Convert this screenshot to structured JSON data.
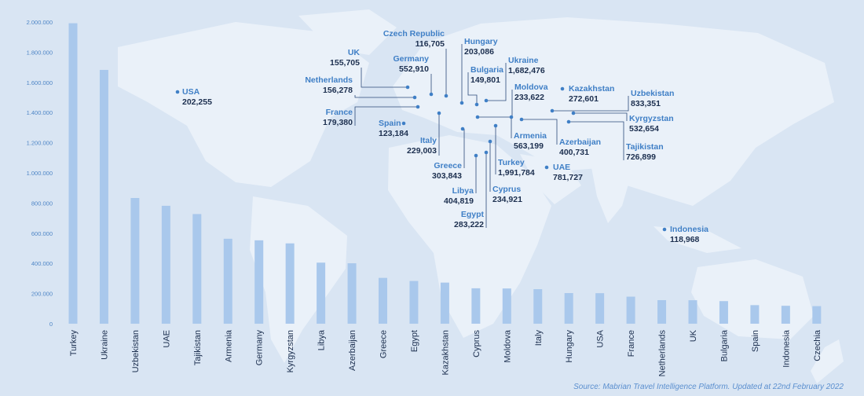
{
  "colors": {
    "background": "#d9e5f3",
    "land": "#eaf1f9",
    "bar": "#a9c8ec",
    "axis_text": "#4f86c6",
    "label_name": "#3f7fc6",
    "label_value": "#1c2f4f",
    "leader": "#2b4a7a",
    "dot": "#3f7fc6"
  },
  "source": "Source: Mabrian Travel Intelligence Platform. Updated at 22nd February 2022",
  "chart_data": {
    "type": "bar",
    "title": "",
    "xlabel": "",
    "ylabel": "",
    "ylim": [
      0,
      2000000
    ],
    "yticks": [
      0,
      200000,
      400000,
      600000,
      800000,
      1000000,
      1200000,
      1400000,
      1600000,
      1800000,
      2000000
    ],
    "ytick_labels": [
      "0",
      "200.000",
      "400.000",
      "600.000",
      "800.000",
      "1.000.000",
      "1.200.000",
      "1.400.000",
      "1.600.000",
      "1.800.000",
      "2.000.000"
    ],
    "categories": [
      "Turkey",
      "Ukraine",
      "Uzbekistan",
      "UAE",
      "Tajikistan",
      "Armenia",
      "Germany",
      "Kyrgyzstan",
      "Libya",
      "Azerbaijan",
      "Greece",
      "Egypt",
      "Kazakhstan",
      "Cyprus",
      "Moldova",
      "Italy",
      "Hungary",
      "USA",
      "France",
      "Netherlands",
      "UK",
      "Bulgaria",
      "Spain",
      "Indonesia",
      "Czechia"
    ],
    "values": [
      1991784,
      1682476,
      833351,
      781727,
      726899,
      563199,
      552910,
      532654,
      404819,
      400731,
      303843,
      283222,
      272601,
      234921,
      233622,
      229003,
      203086,
      202255,
      179380,
      156278,
      155705,
      149801,
      123184,
      118968,
      116705
    ]
  },
  "map_labels": [
    {
      "name": "USA",
      "value": "202,255"
    },
    {
      "name": "UK",
      "value": "155,705"
    },
    {
      "name": "Netherlands",
      "value": "156,278"
    },
    {
      "name": "France",
      "value": "179,380"
    },
    {
      "name": "Spain",
      "value": "123,184"
    },
    {
      "name": "Czech Republic",
      "value": "116,705"
    },
    {
      "name": "Germany",
      "value": "552,910"
    },
    {
      "name": "Italy",
      "value": "229,003"
    },
    {
      "name": "Hungary",
      "value": "203,086"
    },
    {
      "name": "Bulgaria",
      "value": "149,801"
    },
    {
      "name": "Ukraine",
      "value": "1,682,476"
    },
    {
      "name": "Moldova",
      "value": "233,622"
    },
    {
      "name": "Greece",
      "value": "303,843"
    },
    {
      "name": "Libya",
      "value": "404,819"
    },
    {
      "name": "Egypt",
      "value": "283,222"
    },
    {
      "name": "Cyprus",
      "value": "234,921"
    },
    {
      "name": "Turkey",
      "value": "1,991,784"
    },
    {
      "name": "Armenia",
      "value": "563,199"
    },
    {
      "name": "Azerbaijan",
      "value": "400,731"
    },
    {
      "name": "UAE",
      "value": "781,727"
    },
    {
      "name": "Kazakhstan",
      "value": "272,601"
    },
    {
      "name": "Uzbekistan",
      "value": "833,351"
    },
    {
      "name": "Kyrgyzstan",
      "value": "532,654"
    },
    {
      "name": "Tajikistan",
      "value": "726,899"
    },
    {
      "name": "Indonesia",
      "value": "118,968"
    }
  ]
}
